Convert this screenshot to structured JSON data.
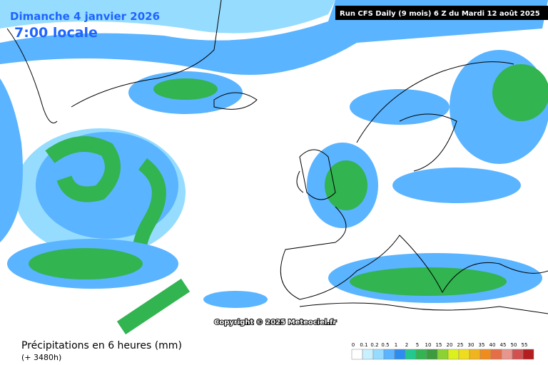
{
  "header": {
    "date": "Dimanche 4 janvier 2026",
    "time": "7:00 locale",
    "run": "Run CFS Daily (9 mois) 6 Z du Mardi 12 août 2025"
  },
  "map": {
    "copyright": "Copyright © 2025 Meteociel.fr"
  },
  "footer": {
    "title": "Précipitations en 6 heures (mm)",
    "lead": "(+ 3480h)"
  },
  "legend": {
    "ticks": [
      0,
      0.1,
      0.2,
      0.5,
      1,
      2,
      5,
      10,
      15,
      20,
      25,
      30,
      35,
      40,
      45,
      50,
      55
    ],
    "colors": [
      "#ffffff",
      "#c8f0ff",
      "#96dcff",
      "#5ab4ff",
      "#2d8cf0",
      "#23c88c",
      "#32b450",
      "#3c9b3c",
      "#8cd232",
      "#dcf01e",
      "#f0dc1e",
      "#f0b41e",
      "#f08c1e",
      "#e66e46",
      "#e6968c",
      "#d25050",
      "#b41e1e"
    ]
  }
}
